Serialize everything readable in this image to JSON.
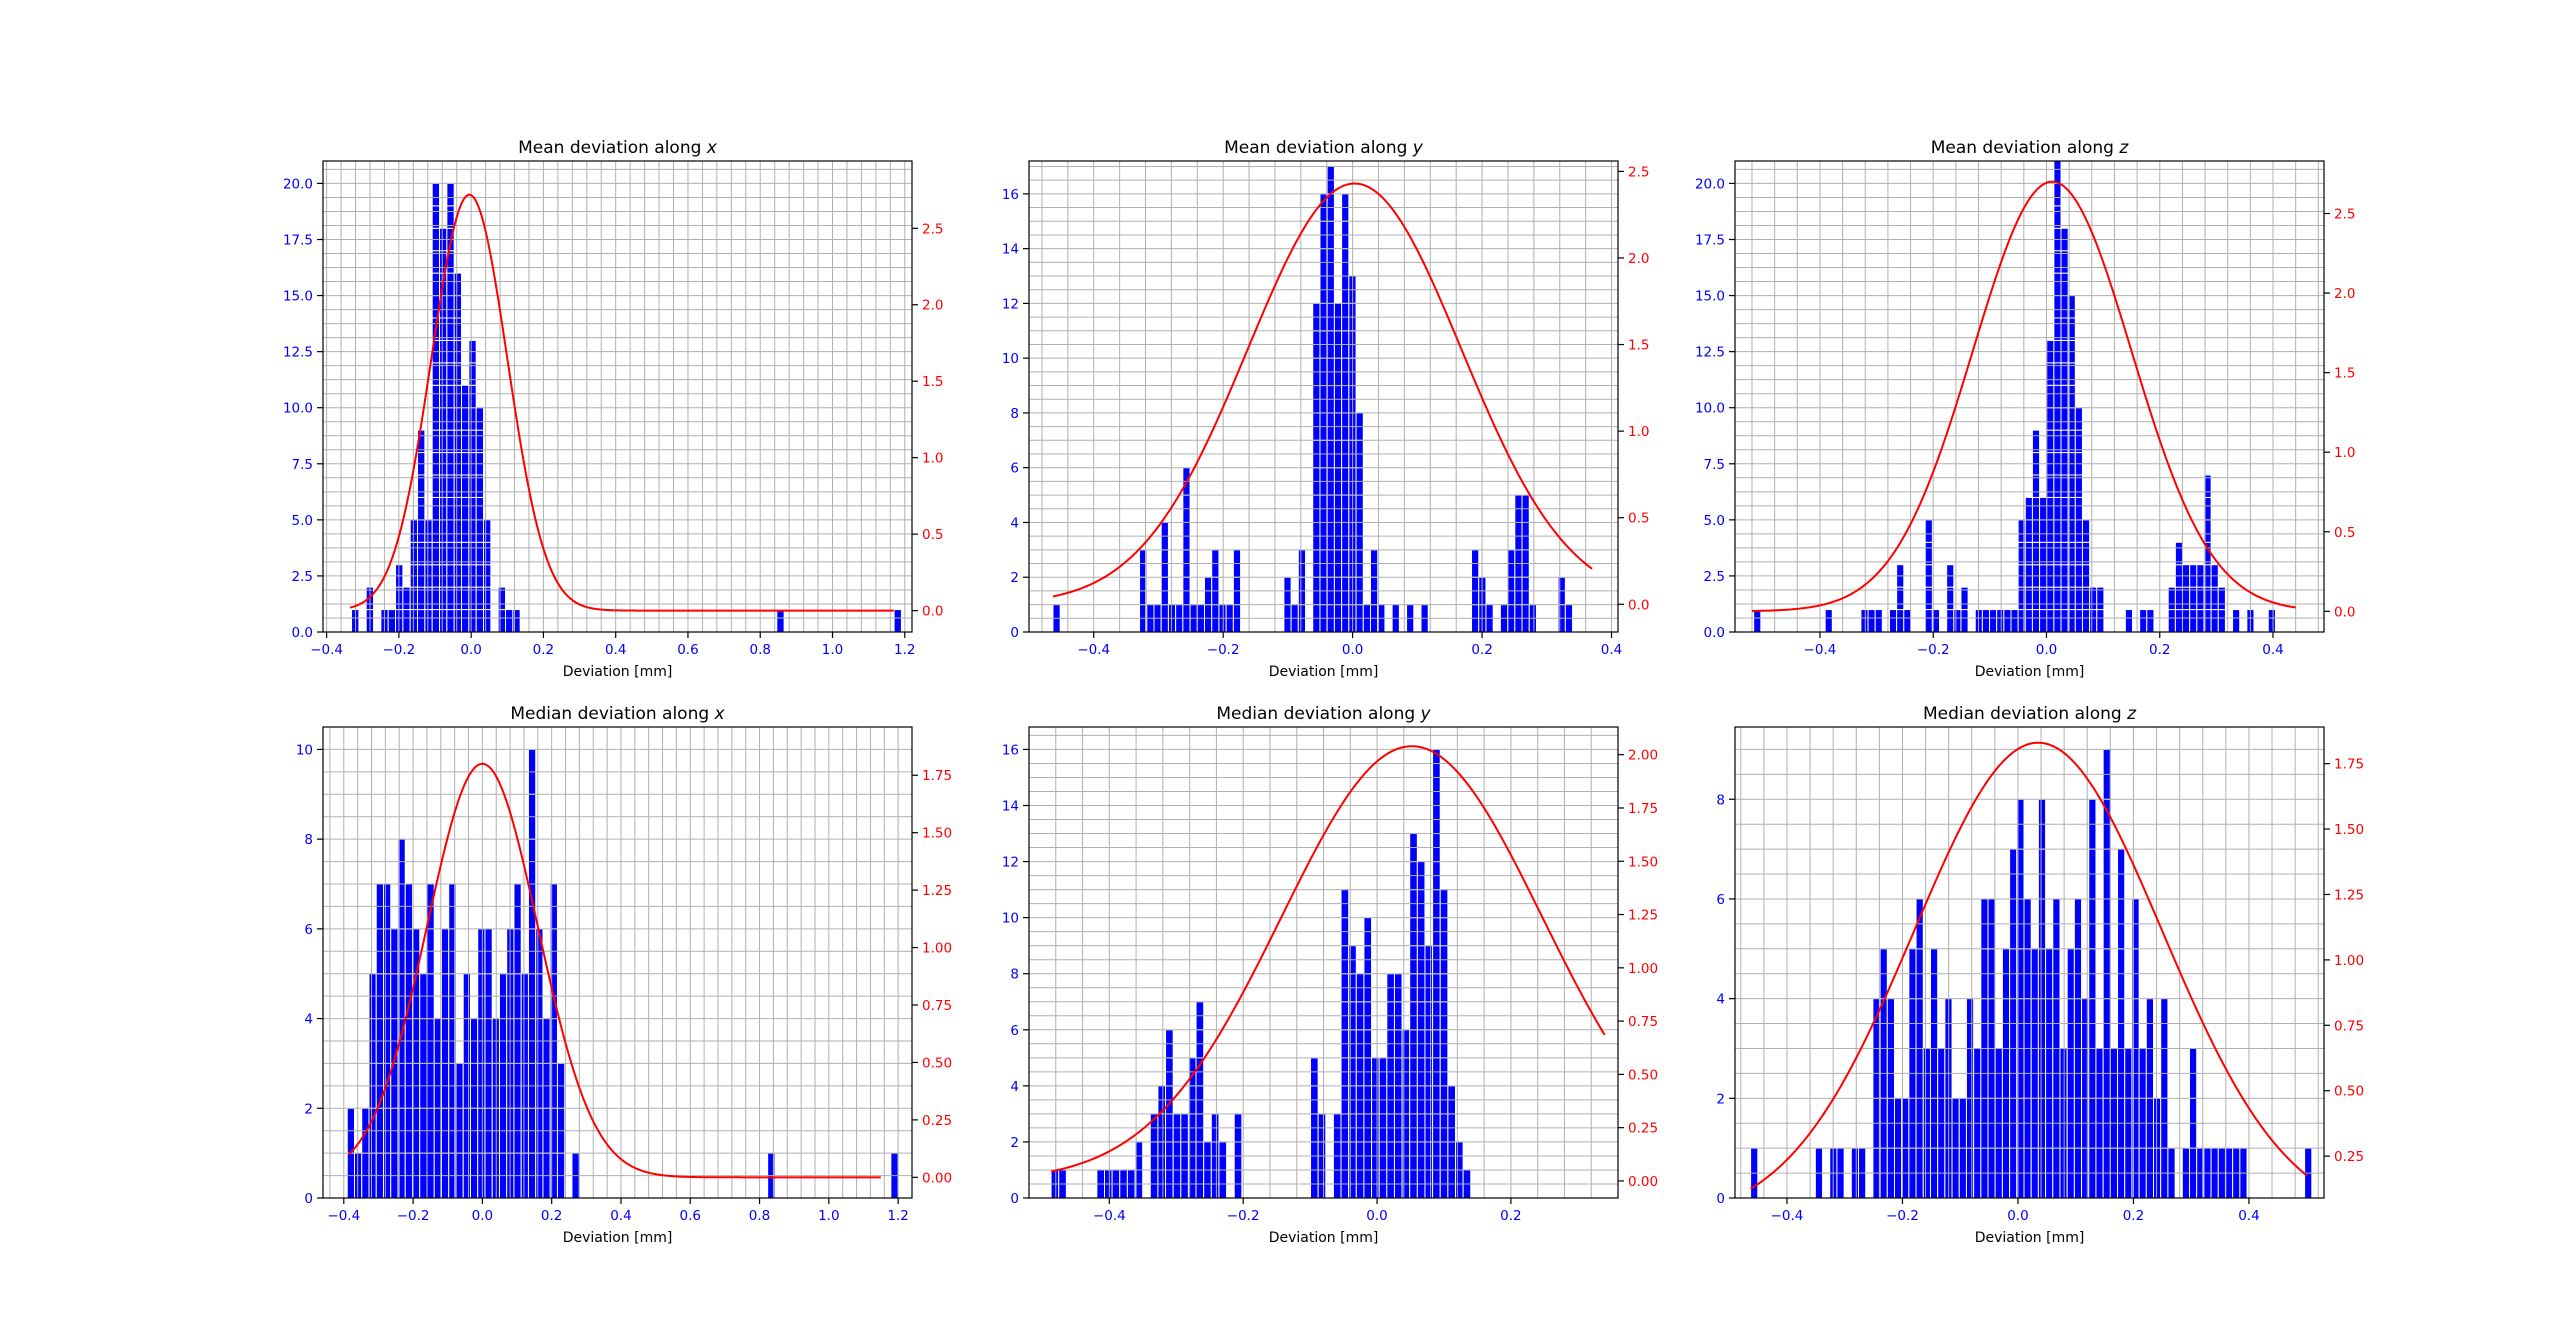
{
  "figure": {
    "background": "#ffffff"
  },
  "colors": {
    "bars": "#0000ff",
    "bar_edge": "#ffffff",
    "curve": "#ff0000",
    "left_ticks": "#0000ff",
    "right_ticks": "#ff0000",
    "grid": "#b0b0b0"
  },
  "chart_data": [
    {
      "type": "bar",
      "title": "Mean deviation along ",
      "title_var": "x",
      "xlabel": "Deviation [mm]",
      "xlim": [
        -0.41,
        1.22
      ],
      "ylim": [
        0,
        21
      ],
      "y2lim": [
        -0.14,
        2.94
      ],
      "xticks": [
        -0.4,
        -0.2,
        0.0,
        0.2,
        0.4,
        0.6,
        0.8,
        1.0,
        1.2
      ],
      "xtick_labels": [
        "−0.4",
        "−0.2",
        "0.0",
        "0.2",
        "0.4",
        "0.6",
        "0.8",
        "1.0",
        "1.2"
      ],
      "yticks": [
        0,
        2.5,
        5,
        7.5,
        10,
        12.5,
        15,
        17.5,
        20
      ],
      "ytick_labels": [
        "0.0",
        "2.5",
        "5.0",
        "7.5",
        "10.0",
        "12.5",
        "15.0",
        "17.5",
        "20.0"
      ],
      "y2ticks": [
        0,
        0.5,
        1.0,
        1.5,
        2.0,
        2.5
      ],
      "y2tick_labels": [
        "0.0",
        "0.5",
        "1.0",
        "1.5",
        "2.0",
        "2.5"
      ],
      "bins": {
        "start": -0.331,
        "width": 0.02029,
        "counts": [
          1,
          0,
          2,
          0,
          1,
          1,
          3,
          2,
          5,
          9,
          5,
          20,
          18,
          20,
          16,
          11,
          13,
          10,
          5,
          0,
          2,
          1,
          1,
          0,
          0,
          0,
          0,
          0,
          0,
          0,
          0,
          0,
          0,
          0,
          0,
          0,
          0,
          0,
          0,
          0,
          0,
          0,
          0,
          0,
          0,
          0,
          0,
          0,
          0,
          0,
          0,
          0,
          0,
          0,
          0,
          0,
          0,
          0,
          1,
          0,
          0,
          0,
          0,
          0,
          0,
          0,
          0,
          0,
          0,
          0,
          0,
          0,
          0,
          0,
          1
        ]
      },
      "curve": {
        "mean": -0.005,
        "sd": 0.105,
        "amp": 2.72,
        "x_from": -0.335,
        "x_to": 1.17
      }
    },
    {
      "type": "bar",
      "title": "Mean deviation along ",
      "title_var": "y",
      "xlabel": "Deviation [mm]",
      "xlim": [
        -0.5,
        0.41
      ],
      "ylim": [
        0,
        17.2
      ],
      "y2lim": [
        -0.16,
        2.56
      ],
      "xticks": [
        -0.4,
        -0.2,
        0.0,
        0.2,
        0.4
      ],
      "xtick_labels": [
        "−0.4",
        "−0.2",
        "0.0",
        "0.2",
        "0.4"
      ],
      "yticks": [
        0,
        2,
        4,
        6,
        8,
        10,
        12,
        14,
        16
      ],
      "ytick_labels": [
        "0",
        "2",
        "4",
        "6",
        "8",
        "10",
        "12",
        "14",
        "16"
      ],
      "y2ticks": [
        0,
        0.5,
        1.0,
        1.5,
        2.0,
        2.5
      ],
      "y2tick_labels": [
        "0.0",
        "0.5",
        "1.0",
        "1.5",
        "2.0",
        "2.5"
      ],
      "bins": {
        "start": -0.463,
        "width": 0.01115,
        "counts": [
          1,
          0,
          0,
          0,
          0,
          0,
          0,
          0,
          0,
          0,
          0,
          0,
          3,
          1,
          1,
          4,
          1,
          1,
          6,
          1,
          1,
          2,
          3,
          1,
          1,
          3,
          0,
          0,
          0,
          0,
          0,
          0,
          2,
          1,
          3,
          0,
          12,
          16,
          17,
          12,
          16,
          13,
          8,
          1,
          3,
          1,
          0,
          1,
          0,
          1,
          0,
          1,
          0,
          0,
          0,
          0,
          0,
          0,
          3,
          2,
          1,
          0,
          1,
          3,
          5,
          5,
          1,
          0,
          0,
          0,
          2,
          1
        ]
      },
      "curve": {
        "mean": 0.003,
        "sd": 0.165,
        "amp": 2.43,
        "x_from": -0.463,
        "x_to": 0.37
      }
    },
    {
      "type": "bar",
      "title": "Mean deviation along ",
      "title_var": "z",
      "xlabel": "Deviation [mm]",
      "xlim": [
        -0.55,
        0.49
      ],
      "ylim": [
        0,
        21
      ],
      "y2lim": [
        -0.13,
        2.83
      ],
      "xticks": [
        -0.4,
        -0.2,
        0.0,
        0.2,
        0.4
      ],
      "xtick_labels": [
        "−0.4",
        "−0.2",
        "0.0",
        "0.2",
        "0.4"
      ],
      "yticks": [
        0,
        2.5,
        5,
        7.5,
        10,
        12.5,
        15,
        17.5,
        20
      ],
      "ytick_labels": [
        "0.0",
        "2.5",
        "5.0",
        "7.5",
        "10.0",
        "12.5",
        "15.0",
        "17.5",
        "20.0"
      ],
      "y2ticks": [
        0,
        0.5,
        1.0,
        1.5,
        2.0,
        2.5
      ],
      "y2tick_labels": [
        "0.0",
        "0.5",
        "1.0",
        "1.5",
        "2.0",
        "2.5"
      ],
      "bins": {
        "start": -0.517,
        "width": 0.01262,
        "counts": [
          1,
          0,
          0,
          0,
          0,
          0,
          0,
          0,
          0,
          0,
          1,
          0,
          0,
          0,
          0,
          1,
          1,
          1,
          0,
          1,
          3,
          1,
          0,
          0,
          5,
          1,
          0,
          3,
          1,
          2,
          0,
          1,
          1,
          1,
          1,
          1,
          1,
          5,
          6,
          9,
          6,
          13,
          21,
          18,
          15,
          10,
          5,
          2,
          2,
          0,
          0,
          0,
          1,
          0,
          1,
          1,
          0,
          0,
          2,
          4,
          3,
          3,
          3,
          7,
          3,
          2,
          0,
          1,
          0,
          1,
          0,
          0,
          1
        ]
      },
      "curve": {
        "mean": 0.01,
        "sd": 0.14,
        "amp": 2.7,
        "x_from": -0.52,
        "x_to": 0.44
      }
    },
    {
      "type": "bar",
      "title": "Median deviation along ",
      "title_var": "x",
      "xlabel": "Deviation [mm]",
      "xlim": [
        -0.46,
        1.24
      ],
      "ylim": [
        0,
        10.5
      ],
      "y2lim": [
        -0.09,
        1.96
      ],
      "xticks": [
        -0.4,
        -0.2,
        0.0,
        0.2,
        0.4,
        0.6,
        0.8,
        1.0,
        1.2
      ],
      "xtick_labels": [
        "−0.4",
        "−0.2",
        "0.0",
        "0.2",
        "0.4",
        "0.6",
        "0.8",
        "1.0",
        "1.2"
      ],
      "yticks": [
        0,
        2,
        4,
        6,
        8,
        10
      ],
      "ytick_labels": [
        "0",
        "2",
        "4",
        "6",
        "8",
        "10"
      ],
      "y2ticks": [
        0,
        0.25,
        0.5,
        0.75,
        1.0,
        1.25,
        1.5,
        1.75
      ],
      "y2tick_labels": [
        "0.00",
        "0.25",
        "0.50",
        "0.75",
        "1.00",
        "1.25",
        "1.50",
        "1.75"
      ],
      "bins": {
        "start": -0.39,
        "width": 0.02092,
        "counts": [
          2,
          1,
          2,
          5,
          7,
          7,
          6,
          8,
          7,
          6,
          5,
          7,
          4,
          6,
          7,
          3,
          5,
          4,
          6,
          6,
          4,
          5,
          6,
          7,
          5,
          10,
          6,
          4,
          7,
          3,
          0,
          1,
          0,
          0,
          0,
          0,
          0,
          0,
          0,
          0,
          0,
          0,
          0,
          0,
          0,
          0,
          0,
          0,
          0,
          0,
          0,
          0,
          0,
          0,
          0,
          0,
          0,
          0,
          1,
          0,
          0,
          0,
          0,
          0,
          0,
          0,
          0,
          0,
          0,
          0,
          0,
          0,
          0,
          0,
          0,
          1
        ]
      },
      "curve": {
        "mean": 0.0,
        "sd": 0.16,
        "amp": 1.8,
        "x_from": -0.385,
        "x_to": 1.15
      }
    },
    {
      "type": "bar",
      "title": "Median deviation along ",
      "title_var": "y",
      "xlabel": "Deviation [mm]",
      "xlim": [
        -0.52,
        0.36
      ],
      "ylim": [
        0,
        16.8
      ],
      "y2lim": [
        -0.08,
        2.13
      ],
      "xticks": [
        -0.4,
        -0.2,
        0.0,
        0.2
      ],
      "xtick_labels": [
        "−0.4",
        "−0.2",
        "0.0",
        "0.2"
      ],
      "yticks": [
        0,
        2,
        4,
        6,
        8,
        10,
        12,
        14,
        16
      ],
      "ytick_labels": [
        "0",
        "2",
        "4",
        "6",
        "8",
        "10",
        "12",
        "14",
        "16"
      ],
      "y2ticks": [
        0,
        0.25,
        0.5,
        0.75,
        1.0,
        1.25,
        1.5,
        1.75,
        2.0
      ],
      "y2tick_labels": [
        "0.00",
        "0.25",
        "0.50",
        "0.75",
        "1.00",
        "1.25",
        "1.50",
        "1.75",
        "2.00"
      ],
      "bins": {
        "start": -0.487,
        "width": 0.0114,
        "counts": [
          1,
          1,
          0,
          0,
          0,
          0,
          1,
          1,
          1,
          1,
          1,
          2,
          0,
          3,
          4,
          6,
          3,
          3,
          5,
          7,
          2,
          3,
          2,
          0,
          3,
          0,
          0,
          0,
          0,
          0,
          0,
          0,
          0,
          0,
          5,
          3,
          0,
          3,
          11,
          9,
          8,
          10,
          5,
          5,
          8,
          8,
          6,
          13,
          12,
          9,
          16,
          11,
          4,
          2,
          1,
          0
        ]
      },
      "curve": {
        "mean": 0.052,
        "sd": 0.195,
        "amp": 2.04,
        "x_from": -0.487,
        "x_to": 0.34
      }
    },
    {
      "type": "bar",
      "title": "Median deviation along ",
      "title_var": "z",
      "xlabel": "Deviation [mm]",
      "xlim": [
        -0.49,
        0.53
      ],
      "ylim": [
        0,
        9.45
      ],
      "y2lim": [
        0.09,
        1.89
      ],
      "xticks": [
        -0.4,
        -0.2,
        0.0,
        0.2,
        0.4
      ],
      "xtick_labels": [
        "−0.4",
        "−0.2",
        "0.0",
        "0.2",
        "0.4"
      ],
      "yticks": [
        0,
        2,
        4,
        6,
        8
      ],
      "ytick_labels": [
        "0",
        "2",
        "4",
        "6",
        "8"
      ],
      "y2ticks": [
        0.25,
        0.5,
        0.75,
        1.0,
        1.25,
        1.5,
        1.75
      ],
      "y2tick_labels": [
        "0.25",
        "0.50",
        "0.75",
        "1.00",
        "1.25",
        "1.50",
        "1.75"
      ],
      "bins": {
        "start": -0.463,
        "width": 0.01246,
        "counts": [
          1,
          0,
          0,
          0,
          0,
          0,
          0,
          0,
          0,
          1,
          0,
          1,
          1,
          0,
          1,
          1,
          0,
          4,
          5,
          4,
          2,
          2,
          5,
          6,
          3,
          5,
          3,
          4,
          2,
          2,
          4,
          3,
          6,
          6,
          3,
          5,
          7,
          8,
          6,
          5,
          8,
          5,
          6,
          3,
          5,
          6,
          4,
          8,
          3,
          9,
          3,
          7,
          3,
          6,
          3,
          4,
          2,
          4,
          1,
          0,
          1,
          3,
          1,
          1,
          1,
          1,
          1,
          1,
          1,
          0,
          0,
          0,
          0,
          0,
          0,
          0,
          0,
          1
        ]
      },
      "curve": {
        "mean": 0.035,
        "sd": 0.215,
        "amp": 1.83,
        "x_from": -0.463,
        "x_to": 0.5
      }
    }
  ]
}
